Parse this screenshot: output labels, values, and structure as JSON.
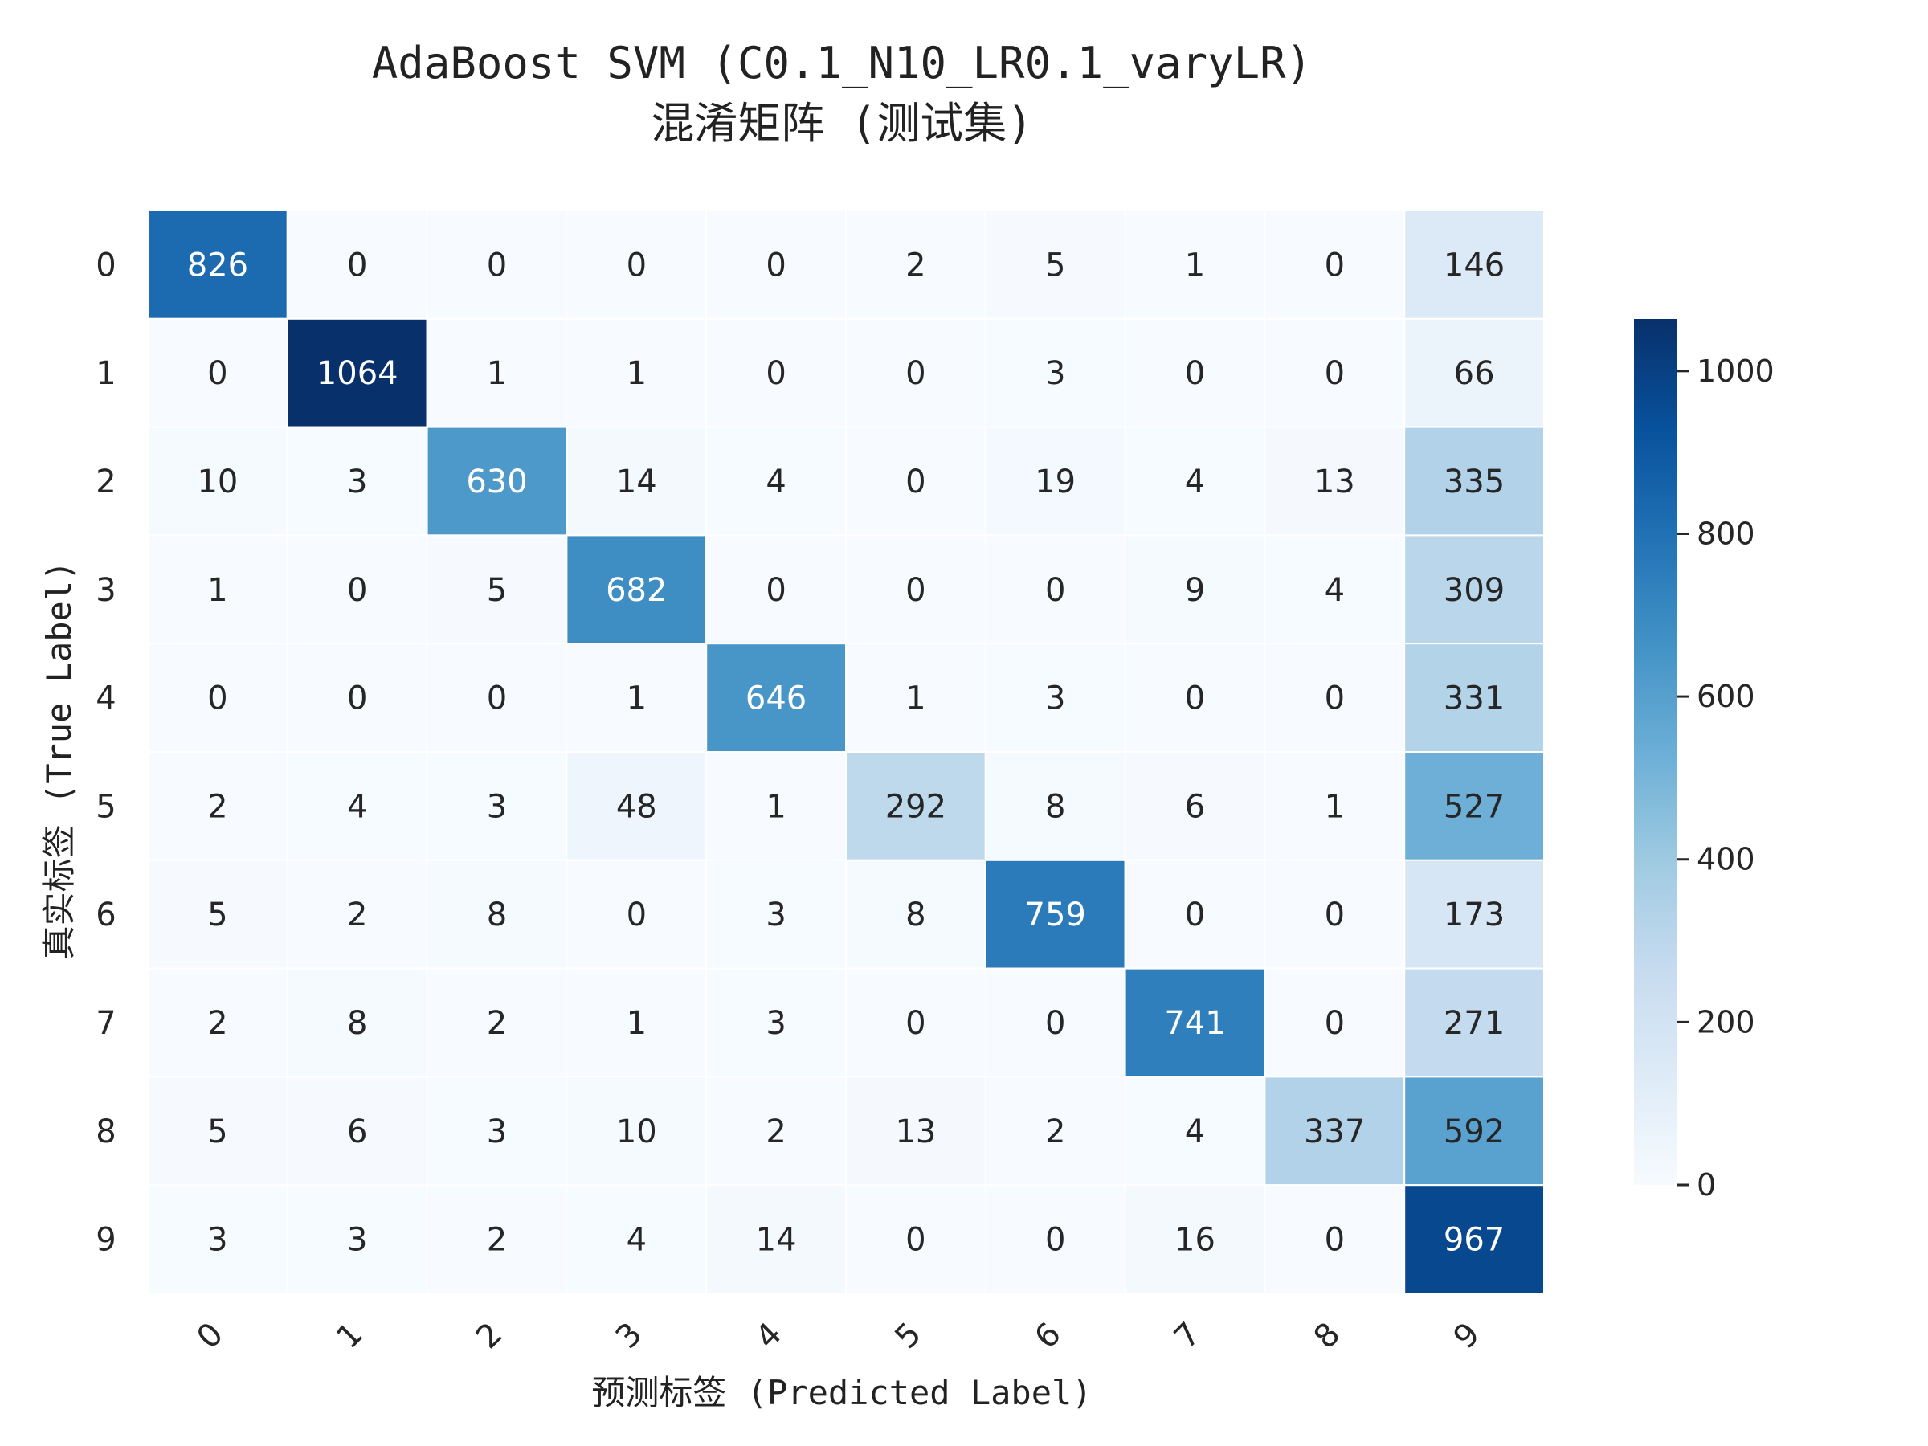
{
  "chart_data": {
    "type": "heatmap",
    "title_line1": "AdaBoost SVM (C0.1_N10_LR0.1_varyLR)",
    "title_line2": "混淆矩阵 (测试集)",
    "xlabel": "预测标签 (Predicted Label)",
    "ylabel": "真实标签 (True Label)",
    "x_categories": [
      "0",
      "1",
      "2",
      "3",
      "4",
      "5",
      "6",
      "7",
      "8",
      "9"
    ],
    "y_categories": [
      "0",
      "1",
      "2",
      "3",
      "4",
      "5",
      "6",
      "7",
      "8",
      "9"
    ],
    "matrix": [
      [
        826,
        0,
        0,
        0,
        0,
        2,
        5,
        1,
        0,
        146
      ],
      [
        0,
        1064,
        1,
        1,
        0,
        0,
        3,
        0,
        0,
        66
      ],
      [
        10,
        3,
        630,
        14,
        4,
        0,
        19,
        4,
        13,
        335
      ],
      [
        1,
        0,
        5,
        682,
        0,
        0,
        0,
        9,
        4,
        309
      ],
      [
        0,
        0,
        0,
        1,
        646,
        1,
        3,
        0,
        0,
        331
      ],
      [
        2,
        4,
        3,
        48,
        1,
        292,
        8,
        6,
        1,
        527
      ],
      [
        5,
        2,
        8,
        0,
        3,
        8,
        759,
        0,
        0,
        173
      ],
      [
        2,
        8,
        2,
        1,
        3,
        0,
        0,
        741,
        0,
        271
      ],
      [
        5,
        6,
        3,
        10,
        2,
        13,
        2,
        4,
        337,
        592
      ],
      [
        3,
        3,
        2,
        4,
        14,
        0,
        0,
        16,
        0,
        967
      ]
    ],
    "colormap": "Blues",
    "colorbar": {
      "min": 0,
      "max": 1064,
      "ticks": [
        "0",
        "200",
        "400",
        "600",
        "800",
        "1000"
      ]
    }
  }
}
